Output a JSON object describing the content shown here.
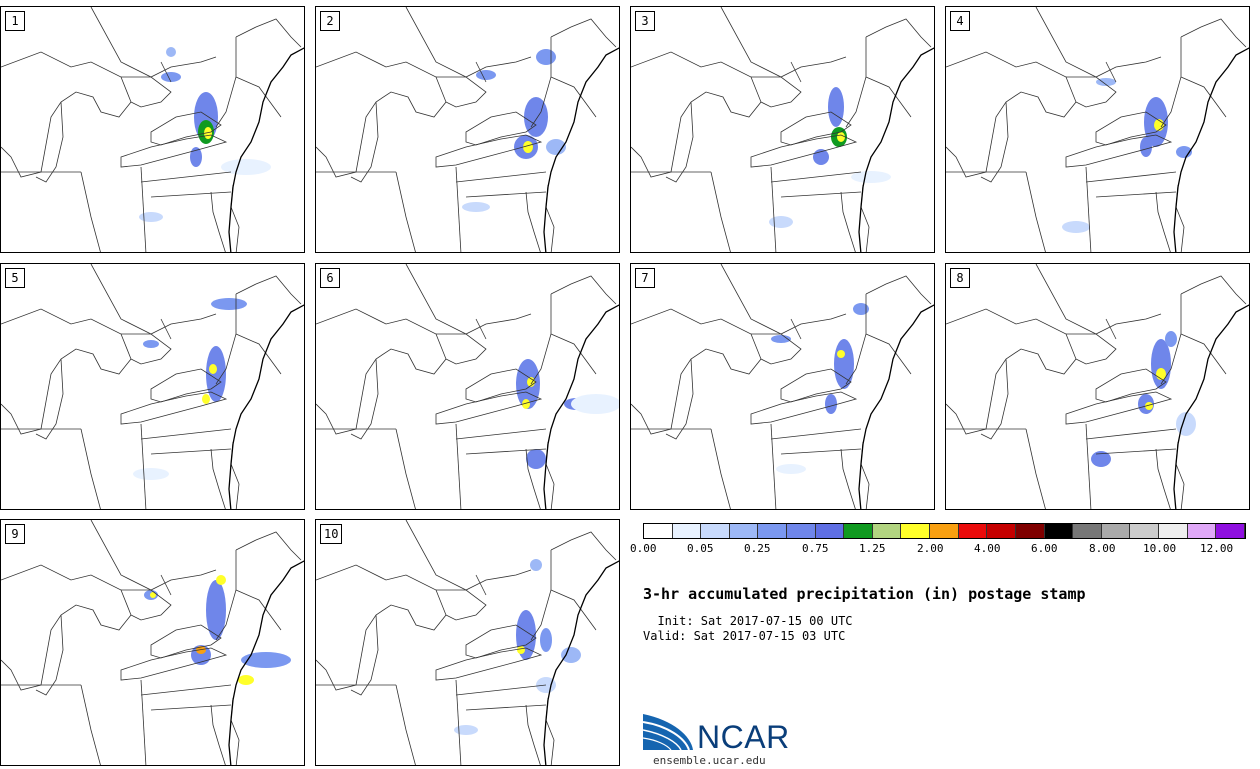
{
  "panels": [
    {
      "label": "1"
    },
    {
      "label": "2"
    },
    {
      "label": "3"
    },
    {
      "label": "4"
    },
    {
      "label": "5"
    },
    {
      "label": "6"
    },
    {
      "label": "7"
    },
    {
      "label": "8"
    },
    {
      "label": "9"
    },
    {
      "label": "10"
    }
  ],
  "legend": {
    "colors": [
      "#ffffff",
      "#e8f2ff",
      "#c8dafc",
      "#9db8f6",
      "#7b98f0",
      "#6f86ea",
      "#5f6fe4",
      "#109a20",
      "#b2d480",
      "#ffff2a",
      "#f9a011",
      "#ea0b0b",
      "#c50000",
      "#7f0000",
      "#000000",
      "#777777",
      "#aaaaaa",
      "#cccccc",
      "#eeeeee",
      "#e0a8f8",
      "#8f10e0"
    ],
    "labels": [
      "0.00",
      "0.05",
      "0.25",
      "0.75",
      "1.25",
      "2.00",
      "4.00",
      "6.00",
      "8.00",
      "10.00",
      "12.00"
    ]
  },
  "title": "3-hr accumulated precipitation (in) postage stamp",
  "init": "  Init: Sat 2017-07-15 00 UTC",
  "valid": "Valid: Sat 2017-07-15 03 UTC",
  "logo_text": "NCAR",
  "url": "ensemble.ucar.edu"
}
